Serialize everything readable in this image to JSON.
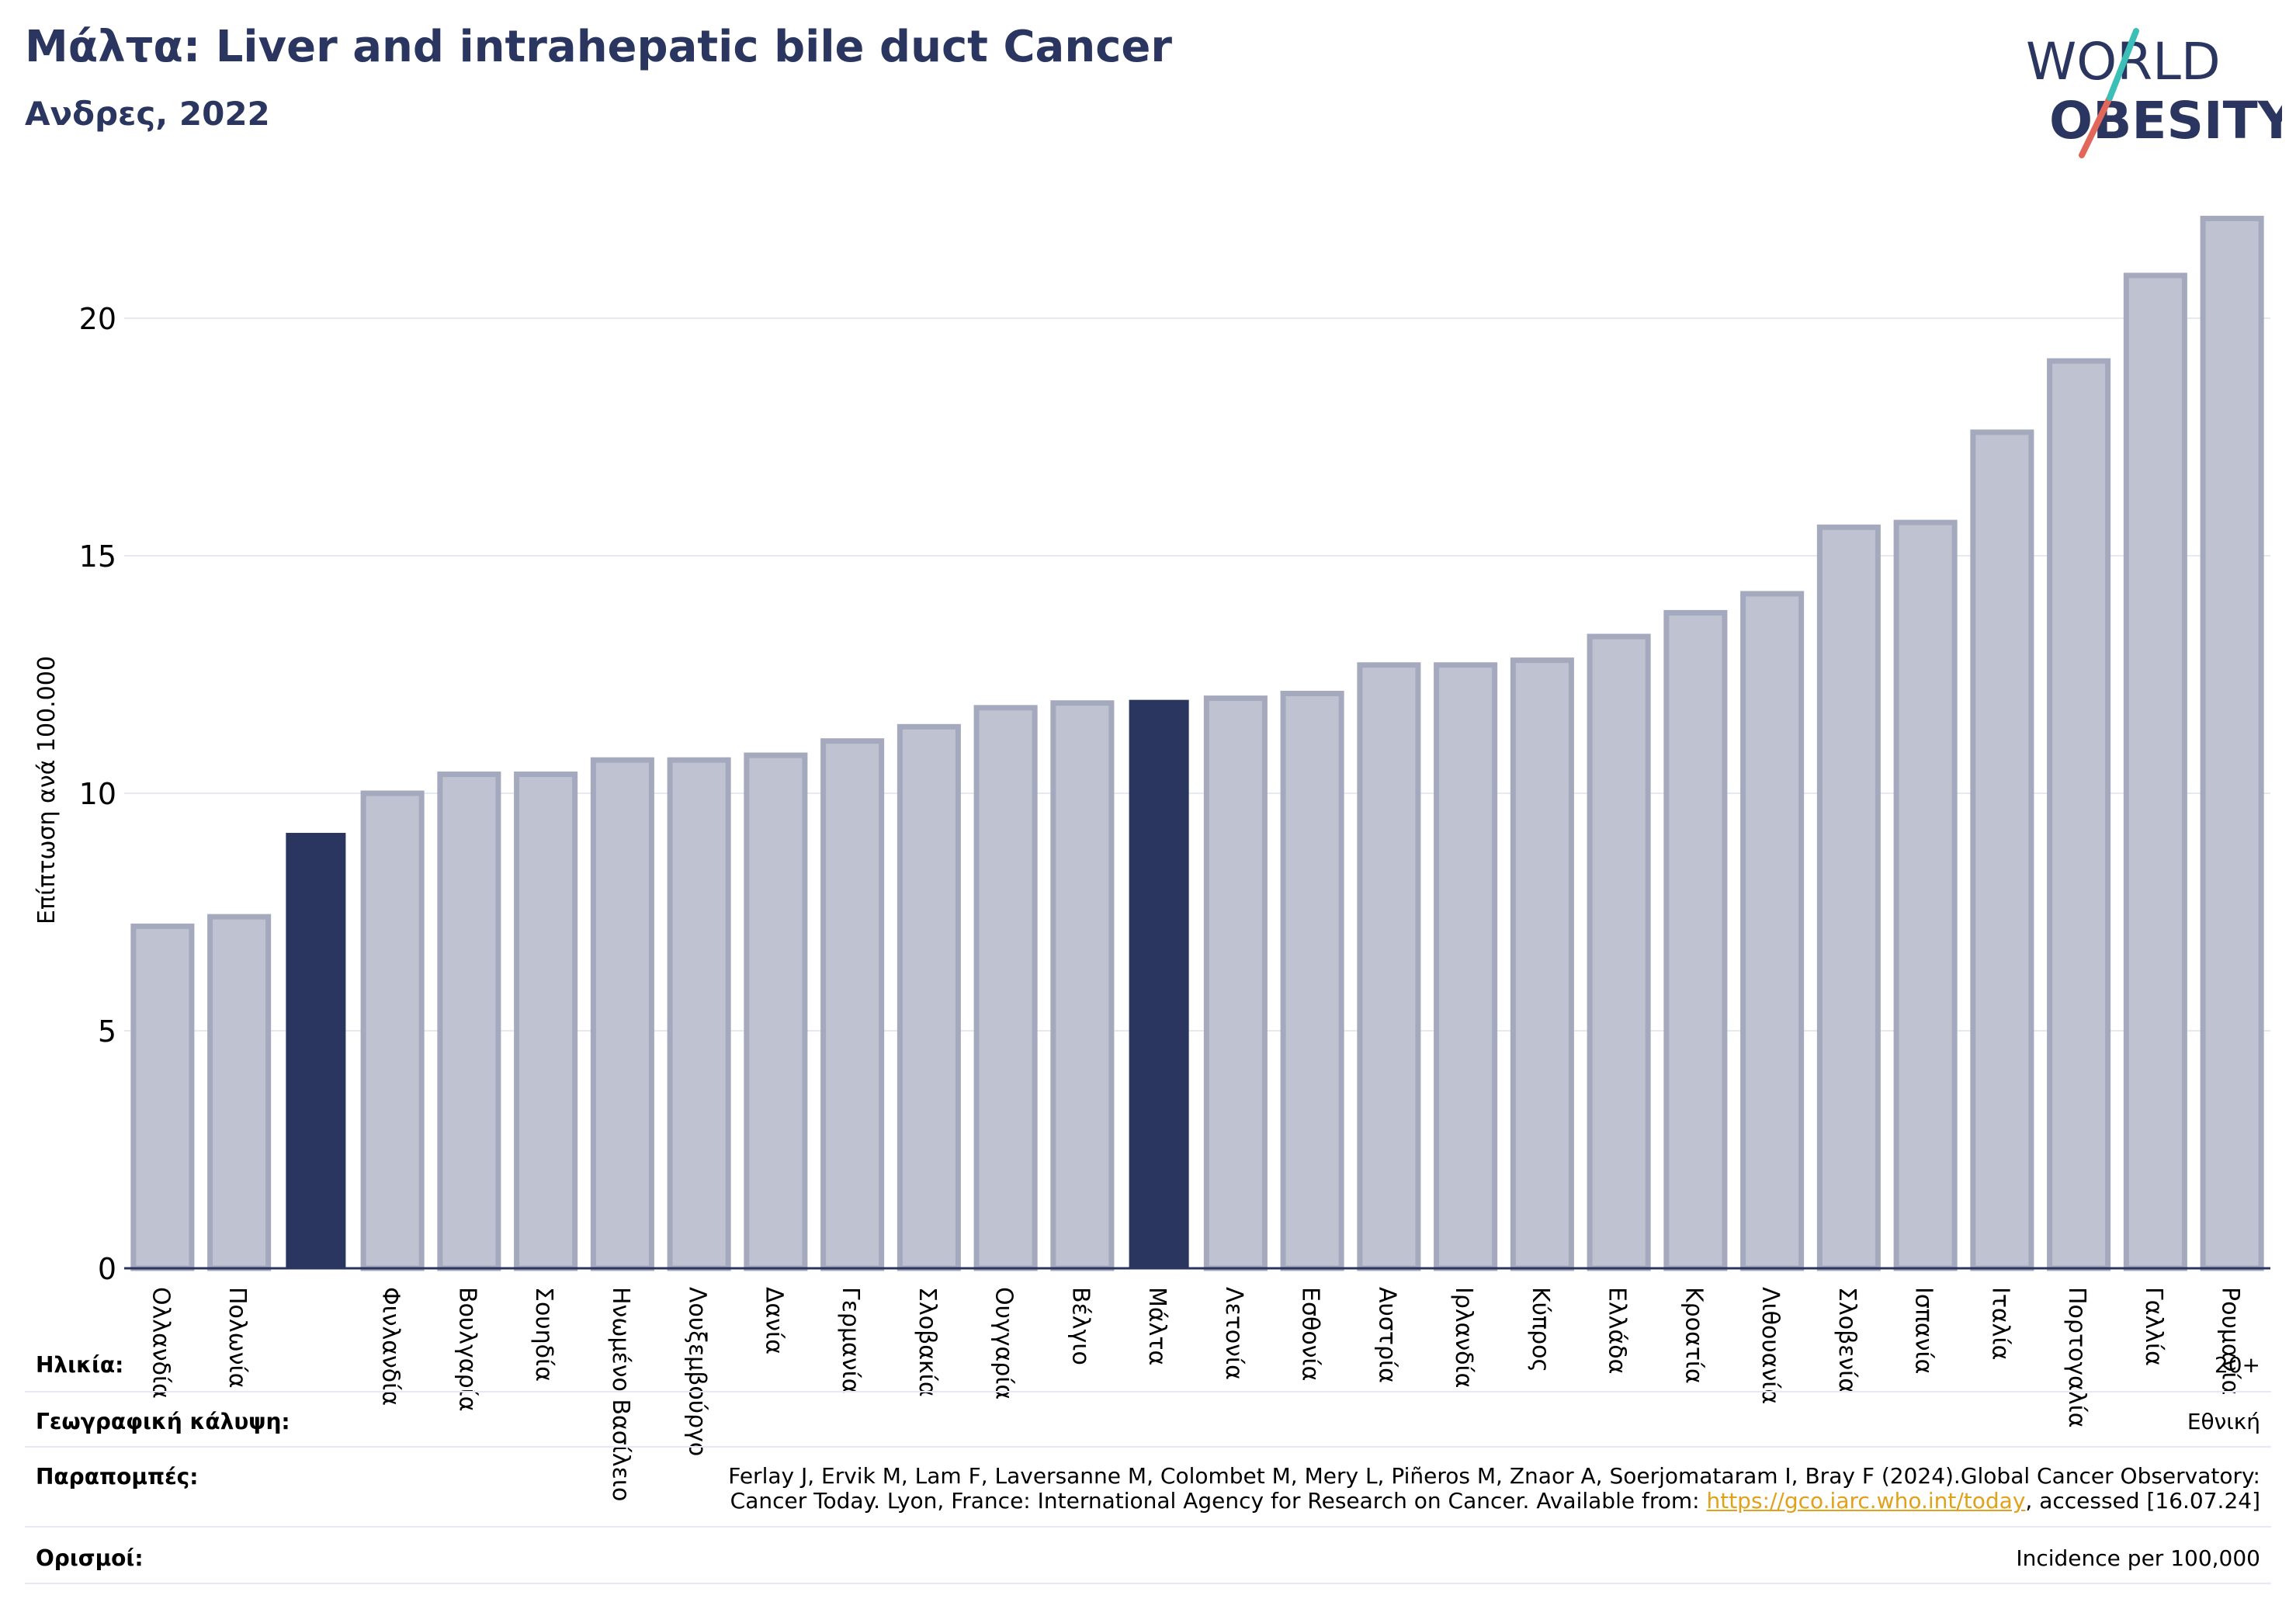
{
  "header": {
    "title": "Μάλτα: Liver and intrahepatic bile duct Cancer",
    "subtitle": "Ανδρες, 2022"
  },
  "logo": {
    "line1": "WORLD",
    "line2": "OBESITY"
  },
  "chart_data": {
    "type": "bar",
    "ylabel": "Επίπτωση ανά 100.000",
    "ylim": [
      0,
      22.5
    ],
    "yticks": [
      0,
      5,
      10,
      15,
      20
    ],
    "grid": true,
    "categories": [
      "Ολλανδία",
      "Πολωνία",
      "",
      "Φινλανδία",
      "Βουλγαρία",
      "Σουηδία",
      "Ηνωμένο Βασίλειο",
      "Λουξεμβούργο",
      "Δανία",
      "Γερμανία",
      "Σλοβακία",
      "Ουγγαρία",
      "Βέλγιο",
      "Μάλτα",
      "Λετονία",
      "Εσθονία",
      "Αυστρία",
      "Ιρλανδία",
      "Κύπρος",
      "Ελλάδα",
      "Κροατία",
      "Λιθουανία",
      "Σλοβενία",
      "Ισπανία",
      "Ιταλία",
      "Πορτογαλία",
      "Γαλλία",
      "Ρουμανία"
    ],
    "values": [
      7.2,
      7.4,
      9.15,
      10.0,
      10.4,
      10.4,
      10.7,
      10.7,
      10.8,
      11.1,
      11.4,
      11.8,
      11.9,
      11.95,
      12.0,
      12.1,
      12.7,
      12.7,
      12.8,
      13.3,
      13.8,
      14.2,
      15.6,
      15.7,
      17.6,
      19.1,
      20.9,
      22.1
    ],
    "highlight": [
      2,
      13
    ],
    "colors": {
      "bar": "#bfc2d1",
      "bar_edge": "#a4a9be",
      "highlight": "#2a3560",
      "axis": "#2a3560",
      "grid": "#e6e8f2"
    }
  },
  "meta": {
    "age_label": "Ηλικία:",
    "age_value": "20+",
    "coverage_label": "Γεωγραφική κάλυψη:",
    "coverage_value": "Εθνική",
    "refs_label": "Παραπομπές:",
    "refs_line1": "Ferlay J, Ervik M, Lam F, Laversanne M, Colombet M, Mery L, Piñeros M, Znaor A, Soerjomataram I, Bray F (2024).Global Cancer Observatory:",
    "refs_line2_pre": "Cancer Today. Lyon, France: International Agency for Research on Cancer. Available from: ",
    "refs_link": "https://gco.iarc.who.int/today",
    "refs_line2_post": ", accessed [16.07.24]",
    "def_label": "Ορισμοί:",
    "def_value": "Incidence per 100,000"
  }
}
